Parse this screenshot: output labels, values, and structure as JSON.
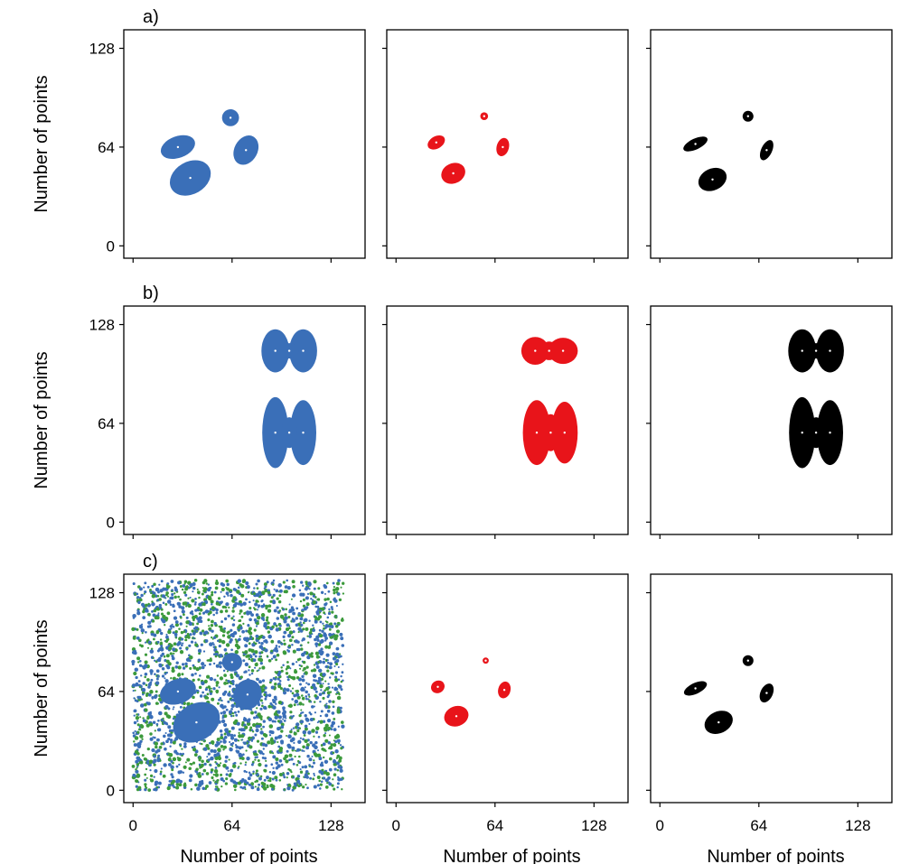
{
  "chart_data": {
    "type": "scatter",
    "panel_labels": [
      "a)",
      "b)",
      "c)"
    ],
    "xlabel": "Number of points",
    "ylabel": "Number of points",
    "xlim": [
      -6,
      150
    ],
    "ylim": [
      -8,
      140
    ],
    "ticks": [
      0,
      64,
      128
    ],
    "tick_labels": [
      "0",
      "64",
      "128"
    ],
    "colors": {
      "blue": "#3a6fb8",
      "red": "#e8141a",
      "black": "#000000",
      "green": "#3c9a3c"
    },
    "panels": [
      {
        "row": 0,
        "col": 0,
        "color": "blue",
        "blobs": [
          {
            "cx": 37,
            "cy": 44,
            "rx": 14,
            "ry": 10.5,
            "rot": -30
          },
          {
            "cx": 29,
            "cy": 64,
            "rx": 11.5,
            "ry": 7,
            "rot": -20
          },
          {
            "cx": 63,
            "cy": 83,
            "rx": 5.5,
            "ry": 5.5,
            "rot": 0
          },
          {
            "cx": 73,
            "cy": 62,
            "rx": 7.5,
            "ry": 10,
            "rot": 28
          }
        ]
      },
      {
        "row": 0,
        "col": 1,
        "color": "red",
        "blobs": [
          {
            "cx": 37,
            "cy": 47,
            "rx": 8,
            "ry": 6.5,
            "rot": -25
          },
          {
            "cx": 26,
            "cy": 67,
            "rx": 6,
            "ry": 4,
            "rot": -30
          },
          {
            "cx": 57,
            "cy": 84,
            "rx": 2.5,
            "ry": 2.5,
            "rot": 0
          },
          {
            "cx": 69,
            "cy": 64,
            "rx": 4,
            "ry": 6,
            "rot": 15
          }
        ]
      },
      {
        "row": 0,
        "col": 2,
        "color": "black",
        "blobs": [
          {
            "cx": 34,
            "cy": 43,
            "rx": 9.5,
            "ry": 7,
            "rot": -25
          },
          {
            "cx": 23,
            "cy": 66,
            "rx": 8.5,
            "ry": 3.5,
            "rot": -25
          },
          {
            "cx": 57,
            "cy": 84,
            "rx": 3.5,
            "ry": 3.5,
            "rot": 0
          },
          {
            "cx": 69,
            "cy": 62,
            "rx": 3.5,
            "ry": 7,
            "rot": 25
          }
        ]
      },
      {
        "row": 1,
        "col": 0,
        "color": "blue",
        "blobs": [
          {
            "cx": 92,
            "cy": 58,
            "rx": 8.5,
            "ry": 23,
            "rot": 0
          },
          {
            "cx": 110,
            "cy": 58,
            "rx": 8.5,
            "ry": 21,
            "rot": 0
          },
          {
            "cx": 101,
            "cy": 58,
            "rx": 5,
            "ry": 10,
            "rot": 0
          },
          {
            "cx": 92,
            "cy": 111,
            "rx": 9,
            "ry": 14,
            "rot": 0
          },
          {
            "cx": 110,
            "cy": 111,
            "rx": 9,
            "ry": 14,
            "rot": 0
          },
          {
            "cx": 101,
            "cy": 111,
            "rx": 6,
            "ry": 5,
            "rot": 0
          }
        ]
      },
      {
        "row": 1,
        "col": 1,
        "color": "red",
        "blobs": [
          {
            "cx": 91,
            "cy": 58,
            "rx": 9,
            "ry": 21,
            "rot": 0
          },
          {
            "cx": 109,
            "cy": 58,
            "rx": 8.5,
            "ry": 20,
            "rot": 0
          },
          {
            "cx": 100,
            "cy": 58,
            "rx": 6,
            "ry": 12,
            "rot": 0
          },
          {
            "cx": 90,
            "cy": 111,
            "rx": 9,
            "ry": 9,
            "rot": 0
          },
          {
            "cx": 108,
            "cy": 111,
            "rx": 9.5,
            "ry": 8.5,
            "rot": 0
          },
          {
            "cx": 99,
            "cy": 111,
            "rx": 6,
            "ry": 6,
            "rot": 0
          }
        ]
      },
      {
        "row": 1,
        "col": 2,
        "color": "black",
        "blobs": [
          {
            "cx": 92,
            "cy": 58,
            "rx": 8.5,
            "ry": 23,
            "rot": 0
          },
          {
            "cx": 110,
            "cy": 58,
            "rx": 8.5,
            "ry": 21,
            "rot": 0
          },
          {
            "cx": 101,
            "cy": 58,
            "rx": 5,
            "ry": 10,
            "rot": 0
          },
          {
            "cx": 92,
            "cy": 111,
            "rx": 9,
            "ry": 14,
            "rot": 0
          },
          {
            "cx": 110,
            "cy": 111,
            "rx": 9,
            "ry": 14,
            "rot": 0
          },
          {
            "cx": 101,
            "cy": 111,
            "rx": 6,
            "ry": 5,
            "rot": 0
          }
        ]
      },
      {
        "row": 2,
        "col": 0,
        "color": "blue",
        "noise": {
          "range": [
            0,
            136
          ],
          "count": 2600,
          "colors": [
            "blue",
            "green"
          ]
        },
        "blobs": [
          {
            "cx": 41,
            "cy": 44,
            "rx": 16,
            "ry": 12,
            "rot": -30
          },
          {
            "cx": 29,
            "cy": 64,
            "rx": 12,
            "ry": 8,
            "rot": -20
          },
          {
            "cx": 64,
            "cy": 83,
            "rx": 6.5,
            "ry": 6,
            "rot": 0
          },
          {
            "cx": 74,
            "cy": 62,
            "rx": 9,
            "ry": 10,
            "rot": 25
          }
        ]
      },
      {
        "row": 2,
        "col": 1,
        "color": "red",
        "blobs": [
          {
            "cx": 39,
            "cy": 48,
            "rx": 8,
            "ry": 6.5,
            "rot": -20
          },
          {
            "cx": 27,
            "cy": 67,
            "rx": 4.5,
            "ry": 4,
            "rot": -30
          },
          {
            "cx": 58,
            "cy": 84,
            "rx": 2,
            "ry": 2,
            "rot": 0
          },
          {
            "cx": 70,
            "cy": 65,
            "rx": 4,
            "ry": 5.5,
            "rot": 15
          }
        ]
      },
      {
        "row": 2,
        "col": 2,
        "color": "black",
        "blobs": [
          {
            "cx": 38,
            "cy": 44,
            "rx": 9.5,
            "ry": 7,
            "rot": -25
          },
          {
            "cx": 23,
            "cy": 66,
            "rx": 8,
            "ry": 3.5,
            "rot": -25
          },
          {
            "cx": 57,
            "cy": 84,
            "rx": 3.5,
            "ry": 3.5,
            "rot": 0
          },
          {
            "cx": 69,
            "cy": 63,
            "rx": 4,
            "ry": 6.5,
            "rot": 25
          }
        ]
      }
    ]
  }
}
